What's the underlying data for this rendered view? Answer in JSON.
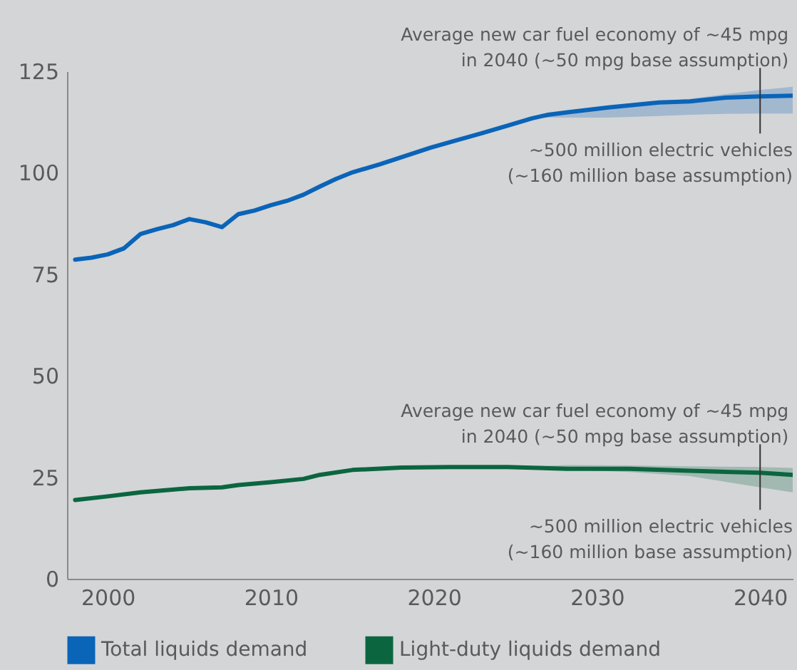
{
  "chart_data": {
    "type": "line",
    "xlim": [
      1997.5,
      2042
    ],
    "xticks": [
      2000,
      2010,
      2020,
      2030,
      2040
    ],
    "ylim": [
      0,
      125
    ],
    "yticks": [
      0,
      25,
      50,
      75,
      100,
      125
    ],
    "grid": false,
    "legend": "bottom left",
    "marker": "none",
    "line_style": "solid",
    "series": [
      {
        "name": "Total liquids demand",
        "color": "#0a64b8",
        "x": [
          1998,
          1999,
          2000,
          2001,
          2002,
          2003,
          2004,
          2005,
          2006,
          2007,
          2008,
          2009,
          2010,
          2011,
          2012,
          2013,
          2014,
          2015,
          2016.7,
          2018.2,
          2019.8,
          2021.3,
          2022.9,
          2024.5,
          2026,
          2027,
          2028.2,
          2030.7,
          2033.8,
          2035.7,
          2037.9,
          2040,
          2042
        ],
        "values": [
          78.6,
          79.1,
          79.9,
          81.4,
          84.9,
          86.1,
          87.1,
          88.6,
          87.8,
          86.6,
          89.8,
          90.7,
          92.0,
          93.1,
          94.6,
          96.6,
          98.5,
          100.1,
          102.1,
          104.1,
          106.2,
          107.9,
          109.7,
          111.6,
          113.4,
          114.3,
          114.9,
          116.1,
          117.3,
          117.6,
          118.5,
          118.8,
          119.0
        ],
        "lower": [
          null,
          null,
          null,
          null,
          null,
          null,
          null,
          null,
          null,
          null,
          null,
          null,
          null,
          null,
          null,
          null,
          null,
          null,
          null,
          null,
          null,
          null,
          null,
          null,
          113.4,
          113.6,
          113.6,
          113.6,
          114.0,
          114.3,
          114.5,
          114.6,
          114.6
        ],
        "upper": [
          null,
          null,
          null,
          null,
          null,
          null,
          null,
          null,
          null,
          null,
          null,
          null,
          null,
          null,
          null,
          null,
          null,
          null,
          null,
          null,
          null,
          null,
          null,
          null,
          113.4,
          114.4,
          115.1,
          116.3,
          117.6,
          118.2,
          119.4,
          120.4,
          121.2
        ]
      },
      {
        "name": "Light-duty liquids demand",
        "color": "#0b6640",
        "x": [
          1998,
          2000,
          2002,
          2005,
          2007,
          2008,
          2010,
          2012,
          2013,
          2015,
          2018,
          2021,
          2024.5,
          2028.2,
          2032,
          2035.7,
          2040,
          2042
        ],
        "values": [
          19.4,
          20.3,
          21.3,
          22.3,
          22.5,
          23.1,
          23.8,
          24.6,
          25.6,
          26.8,
          27.4,
          27.5,
          27.5,
          27.1,
          27.1,
          26.6,
          26.1,
          25.6
        ],
        "lower": [
          null,
          null,
          null,
          null,
          null,
          null,
          null,
          null,
          null,
          null,
          null,
          null,
          27.5,
          26.9,
          26.3,
          25.3,
          22.5,
          21.3
        ],
        "upper": [
          null,
          null,
          null,
          null,
          null,
          null,
          null,
          null,
          null,
          null,
          null,
          null,
          27.5,
          28.0,
          27.9,
          27.7,
          27.5,
          27.3
        ]
      }
    ],
    "annotations": [
      {
        "text": "Average new car fuel economy of ~45 mpg\nin 2040 (~50 mpg base assumption)",
        "x": 2040,
        "y": 118.8
      },
      {
        "text": "~500 million electric vehicles\n(~160 million base assumption)",
        "y": 118.8
      },
      {
        "text": "Average new car fuel economy of ~45 mpg\nin 2040 (~50 mpg base assumption)",
        "x": 2040,
        "y": 26.1
      },
      {
        "text": "~500 million electric vehicles\n(~160 million base assumption)",
        "y": 26.1
      }
    ]
  }
}
